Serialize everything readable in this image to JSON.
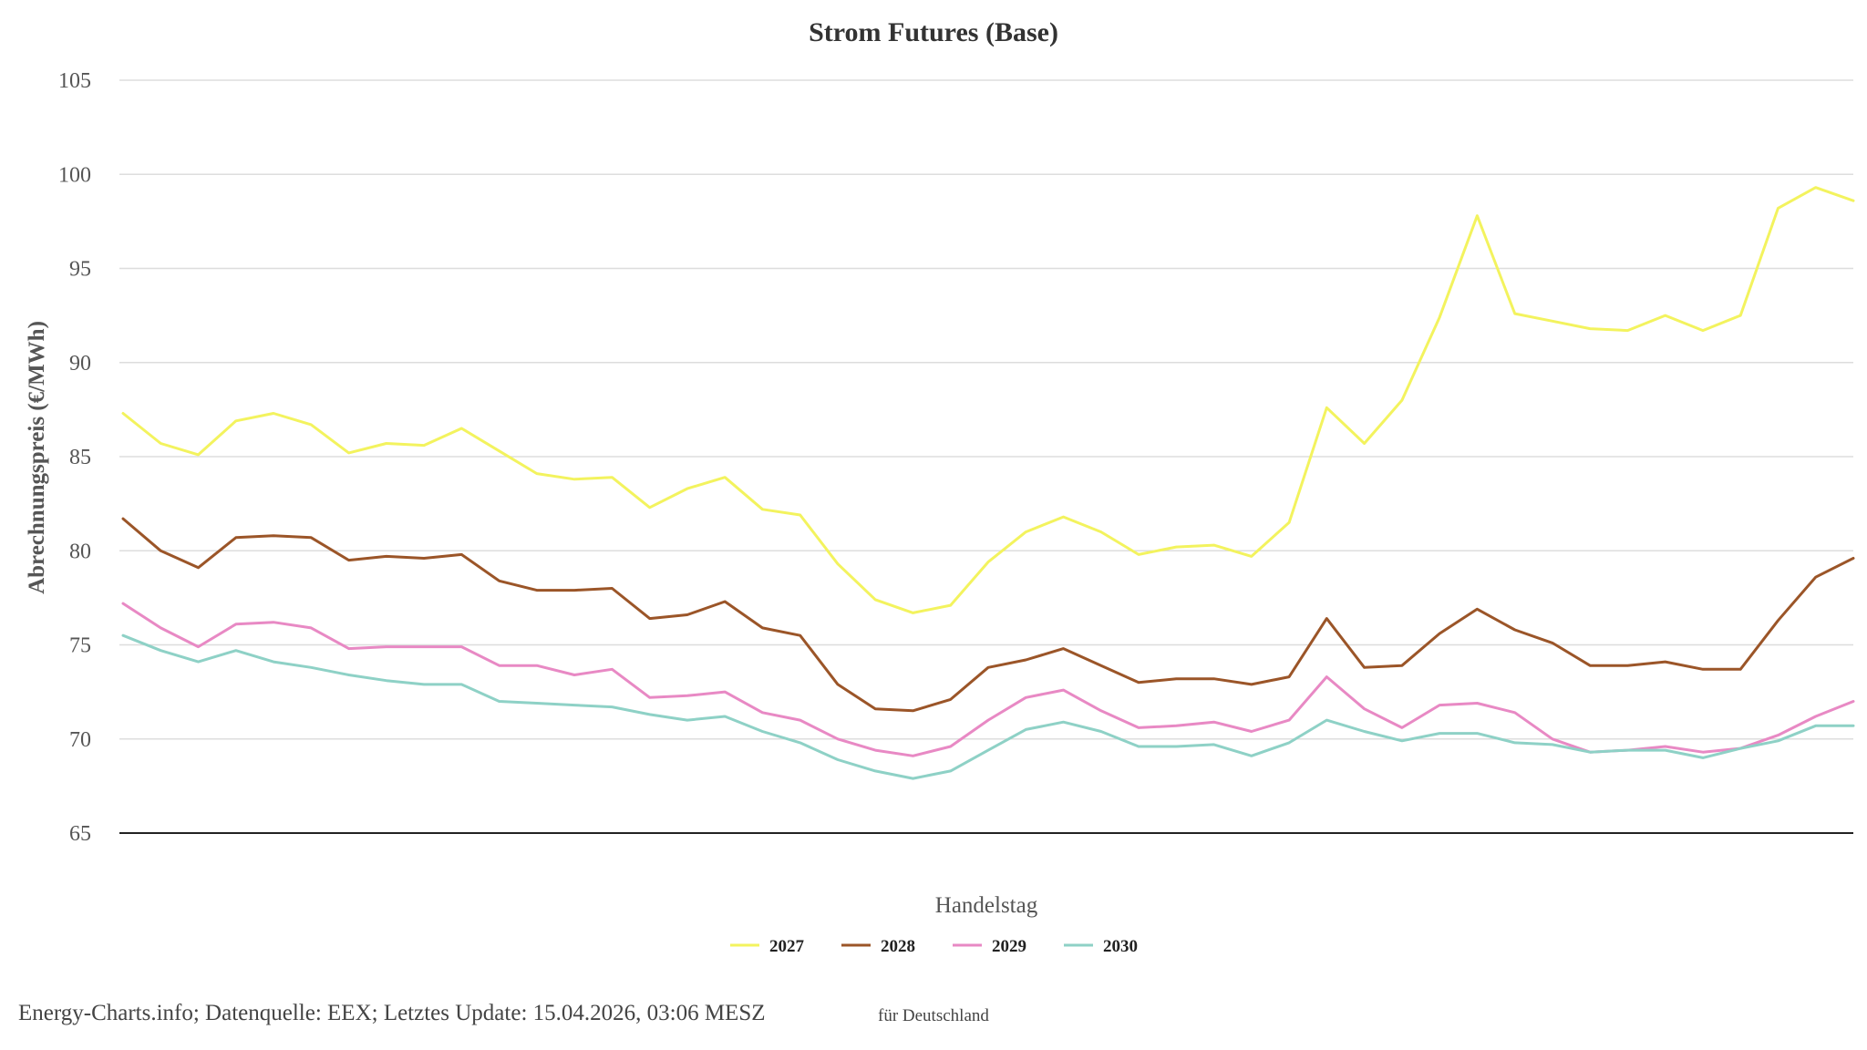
{
  "chart_data": {
    "type": "line",
    "title": "Strom Futures (Base)",
    "xlabel": "Handelstag",
    "ylabel": "Abrechnungspreis (€/MWh)",
    "ylim": [
      65,
      105
    ],
    "yticks": [
      65,
      70,
      75,
      80,
      85,
      90,
      95,
      100,
      105
    ],
    "grid": true,
    "legend_position": "bottom",
    "x_tick_labels": false,
    "series": [
      {
        "name": "2027",
        "color": "#f3f35e",
        "values": [
          87.3,
          85.7,
          85.1,
          86.9,
          87.3,
          86.7,
          85.2,
          85.7,
          85.6,
          86.5,
          85.3,
          84.1,
          83.8,
          83.9,
          82.3,
          83.3,
          83.9,
          82.2,
          81.9,
          79.3,
          77.4,
          76.7,
          77.1,
          79.4,
          81.0,
          81.8,
          81.0,
          79.8,
          80.2,
          80.3,
          79.7,
          81.5,
          87.6,
          85.7,
          88.0,
          92.4,
          97.8,
          92.6,
          92.2,
          91.8,
          91.7,
          92.5,
          91.7,
          92.5,
          98.2,
          99.3,
          98.6
        ]
      },
      {
        "name": "2028",
        "color": "#9b5528",
        "values": [
          81.7,
          80.0,
          79.1,
          80.7,
          80.8,
          80.7,
          79.5,
          79.7,
          79.6,
          79.8,
          78.4,
          77.9,
          77.9,
          78.0,
          76.4,
          76.6,
          77.3,
          75.9,
          75.5,
          72.9,
          71.6,
          71.5,
          72.1,
          73.8,
          74.2,
          74.8,
          73.9,
          73.0,
          73.2,
          73.2,
          72.9,
          73.3,
          76.4,
          73.8,
          73.9,
          75.6,
          76.9,
          75.8,
          75.1,
          73.9,
          73.9,
          74.1,
          73.7,
          73.7,
          76.3,
          78.6,
          79.6
        ]
      },
      {
        "name": "2029",
        "color": "#e889c4",
        "values": [
          77.2,
          75.9,
          74.9,
          76.1,
          76.2,
          75.9,
          74.8,
          74.9,
          74.9,
          74.9,
          73.9,
          73.9,
          73.4,
          73.7,
          72.2,
          72.3,
          72.5,
          71.4,
          71.0,
          70.0,
          69.4,
          69.1,
          69.6,
          71.0,
          72.2,
          72.6,
          71.5,
          70.6,
          70.7,
          70.9,
          70.4,
          71.0,
          73.3,
          71.6,
          70.6,
          71.8,
          71.9,
          71.4,
          70.0,
          69.3,
          69.4,
          69.6,
          69.3,
          69.5,
          70.2,
          71.2,
          72.0
        ]
      },
      {
        "name": "2030",
        "color": "#8ed1c6",
        "values": [
          75.5,
          74.7,
          74.1,
          74.7,
          74.1,
          73.8,
          73.4,
          73.1,
          72.9,
          72.9,
          72.0,
          71.9,
          71.8,
          71.7,
          71.3,
          71.0,
          71.2,
          70.4,
          69.8,
          68.9,
          68.3,
          67.9,
          68.3,
          69.4,
          70.5,
          70.9,
          70.4,
          69.6,
          69.6,
          69.7,
          69.1,
          69.8,
          71.0,
          70.4,
          69.9,
          70.3,
          70.3,
          69.8,
          69.7,
          69.3,
          69.4,
          69.4,
          69.0,
          69.5,
          69.9,
          70.7,
          70.7
        ]
      }
    ]
  },
  "footer": {
    "credits": "Energy-Charts.info; Datenquelle: EEX; Letztes Update: 15.04.2026, 03:06 MESZ",
    "region": "für Deutschland"
  }
}
